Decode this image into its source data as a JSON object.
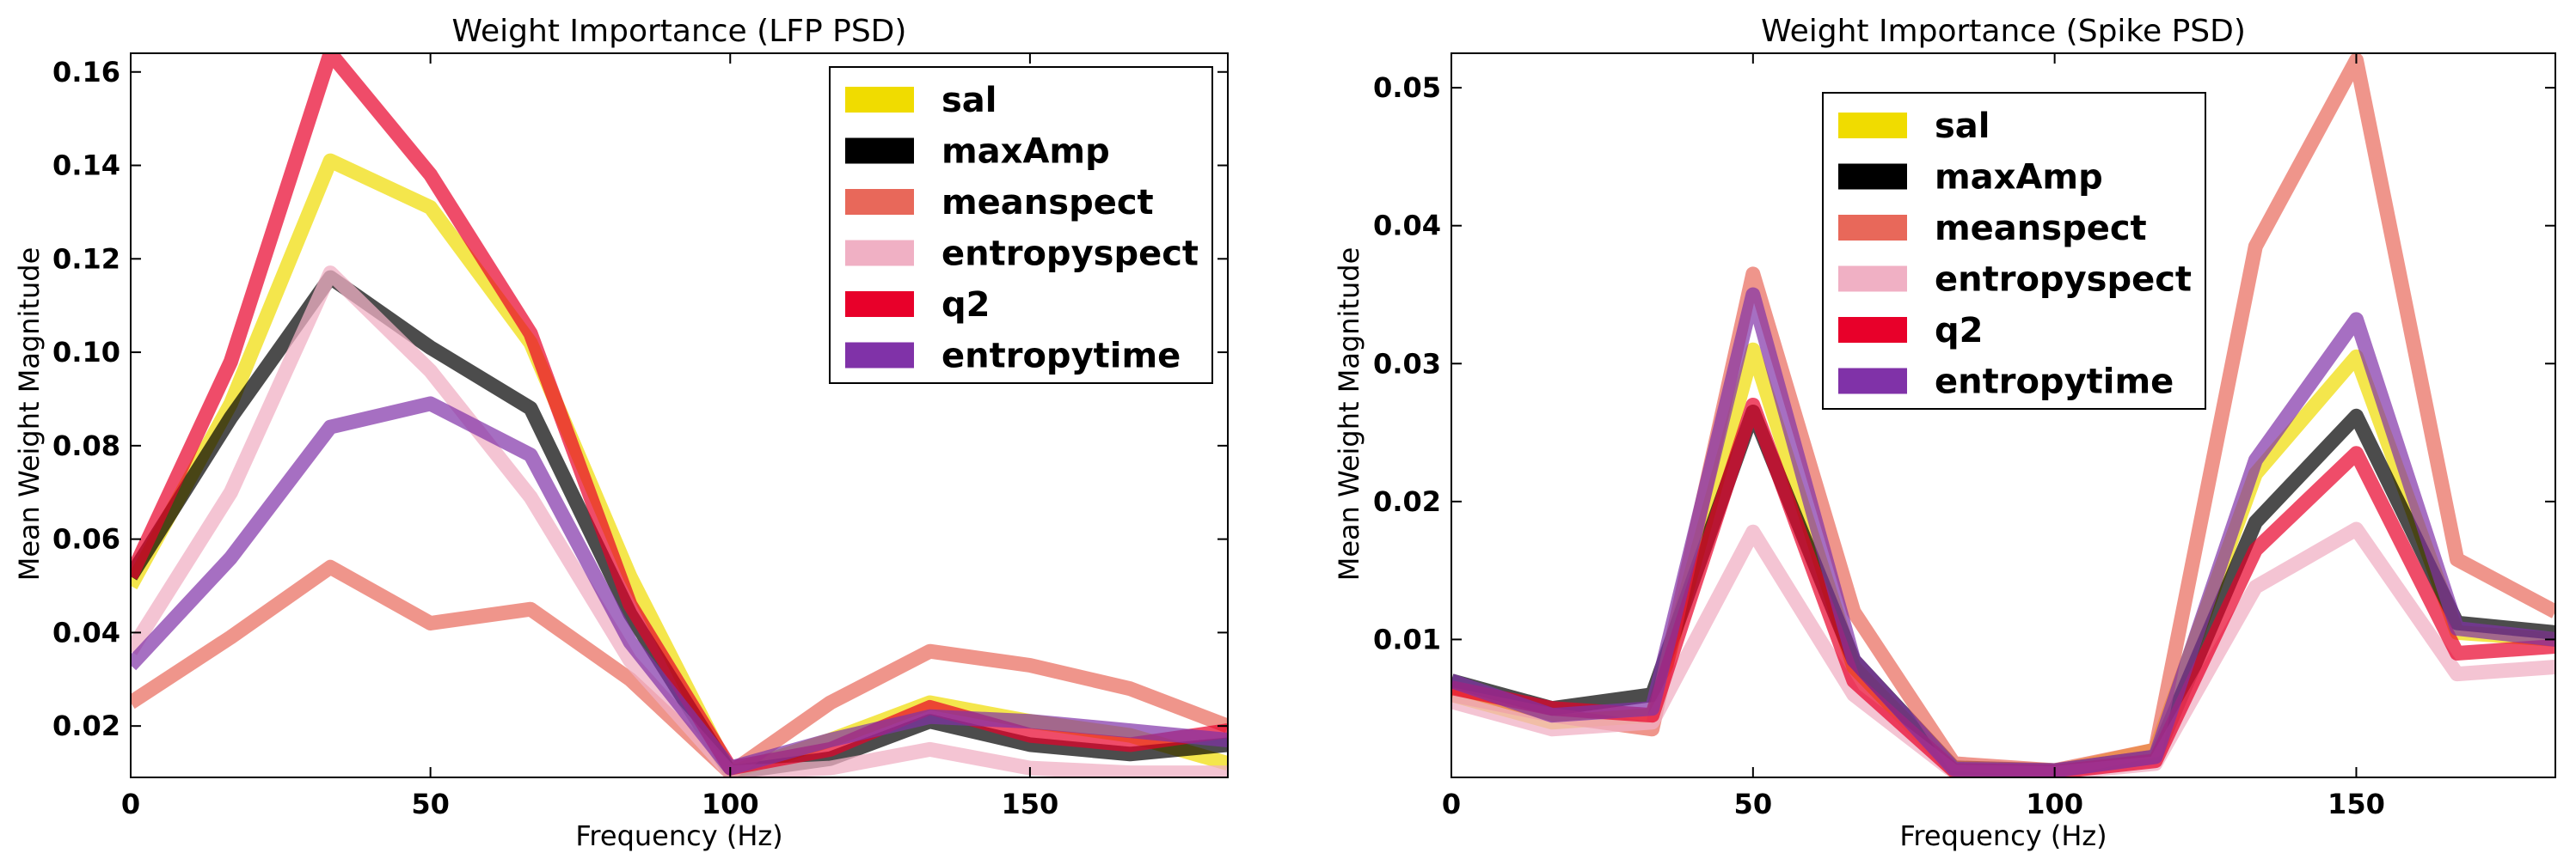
{
  "chart_data": [
    {
      "type": "line",
      "title": "Weight Importance (LFP PSD)",
      "xlabel": "Frequency (Hz)",
      "ylabel": "Mean Weight Magnitude",
      "xlim": [
        0,
        183
      ],
      "ylim": [
        0.009,
        0.164
      ],
      "xticks": [
        0,
        50,
        100,
        150
      ],
      "xtick_labels": [
        "0",
        "50",
        "100",
        "150"
      ],
      "yticks": [
        0.02,
        0.04,
        0.06,
        0.08,
        0.1,
        0.12,
        0.14,
        0.16
      ],
      "ytick_labels": [
        "0.02",
        "0.04",
        "0.06",
        "0.08",
        "0.10",
        "0.12",
        "0.14",
        "0.16"
      ],
      "grid": false,
      "legend": "top-right",
      "x": [
        0,
        16.7,
        33.3,
        50,
        66.7,
        83.3,
        100,
        116.7,
        133.3,
        150,
        166.7,
        183
      ],
      "series": [
        {
          "name": "sal",
          "color": "#f0dc00",
          "values": [
            0.05,
            0.089,
            0.141,
            0.131,
            0.102,
            0.052,
            0.01,
            0.017,
            0.025,
            0.021,
            0.018,
            0.012
          ]
        },
        {
          "name": "maxAmp",
          "color": "#000000",
          "values": [
            0.052,
            0.086,
            0.116,
            0.101,
            0.088,
            0.044,
            0.01,
            0.013,
            0.021,
            0.016,
            0.014,
            0.016
          ]
        },
        {
          "name": "meanspect",
          "color": "#e8685a",
          "values": [
            0.025,
            0.039,
            0.054,
            0.042,
            0.045,
            0.03,
            0.01,
            0.025,
            0.036,
            0.033,
            0.028,
            0.02
          ]
        },
        {
          "name": "entropyspect",
          "color": "#f0b0c4",
          "values": [
            0.036,
            0.07,
            0.117,
            0.096,
            0.069,
            0.034,
            0.01,
            0.011,
            0.015,
            0.011,
            0.01,
            0.01
          ]
        },
        {
          "name": "q2",
          "color": "#e8002a",
          "values": [
            0.052,
            0.098,
            0.164,
            0.138,
            0.104,
            0.046,
            0.011,
            0.015,
            0.024,
            0.018,
            0.016,
            0.019
          ]
        },
        {
          "name": "entropytime",
          "color": "#8032a8",
          "values": [
            0.033,
            0.056,
            0.084,
            0.089,
            0.078,
            0.038,
            0.011,
            0.017,
            0.022,
            0.021,
            0.019,
            0.017
          ]
        }
      ]
    },
    {
      "type": "line",
      "title": "Weight Importance (Spike PSD)",
      "xlabel": "Frequency (Hz)",
      "ylabel": "Mean Weight Magnitude",
      "xlim": [
        0,
        183
      ],
      "ylim": [
        0,
        0.0525
      ],
      "xticks": [
        0,
        50,
        100,
        150
      ],
      "xtick_labels": [
        "0",
        "50",
        "100",
        "150"
      ],
      "yticks": [
        0.01,
        0.02,
        0.03,
        0.04,
        0.05
      ],
      "ytick_labels": [
        "0.01",
        "0.02",
        "0.03",
        "0.04",
        "0.05"
      ],
      "grid": false,
      "legend": "upper center",
      "x": [
        0,
        16.7,
        33.3,
        50,
        66.7,
        83.3,
        100,
        116.7,
        133.3,
        150,
        166.7,
        183
      ],
      "series": [
        {
          "name": "sal",
          "color": "#f0dc00",
          "values": [
            0.006,
            0.004,
            0.0045,
            0.031,
            0.008,
            0.0005,
            0.0004,
            0.002,
            0.022,
            0.0305,
            0.0105,
            0.01
          ]
        },
        {
          "name": "maxAmp",
          "color": "#000000",
          "values": [
            0.007,
            0.005,
            0.006,
            0.0265,
            0.0085,
            0.0007,
            0.0005,
            0.0015,
            0.0185,
            0.0262,
            0.0112,
            0.0105
          ]
        },
        {
          "name": "meanspect",
          "color": "#e8685a",
          "values": [
            0.006,
            0.0045,
            0.0035,
            0.0365,
            0.012,
            0.001,
            0.0005,
            0.002,
            0.0385,
            0.052,
            0.0158,
            0.012
          ]
        },
        {
          "name": "entropyspect",
          "color": "#f0b0c4",
          "values": [
            0.0055,
            0.0035,
            0.004,
            0.0178,
            0.006,
            0.0004,
            0.0003,
            0.001,
            0.0138,
            0.018,
            0.0075,
            0.008
          ]
        },
        {
          "name": "q2",
          "color": "#e8002a",
          "values": [
            0.0065,
            0.005,
            0.0045,
            0.027,
            0.007,
            0.0005,
            0.0004,
            0.0012,
            0.0165,
            0.0235,
            0.009,
            0.0095
          ]
        },
        {
          "name": "entropytime",
          "color": "#8032a8",
          "values": [
            0.007,
            0.0045,
            0.005,
            0.035,
            0.0085,
            0.0006,
            0.0005,
            0.0015,
            0.023,
            0.0332,
            0.0108,
            0.01
          ]
        }
      ]
    }
  ]
}
